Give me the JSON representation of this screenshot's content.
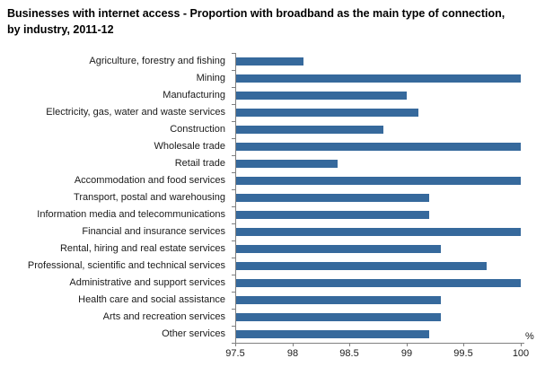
{
  "title_line1": "Businesses with internet access - Proportion with broadband as the main type of connection,",
  "title_line2": "by industry, 2011-12",
  "chart_data": {
    "type": "bar",
    "orientation": "horizontal",
    "title": "Businesses with internet access - Proportion with broadband as the main type of connection, by industry, 2011-12",
    "categories": [
      "Agriculture, forestry and fishing",
      "Mining",
      "Manufacturing",
      "Electricity, gas, water and waste services",
      "Construction",
      "Wholesale trade",
      "Retail trade",
      "Accommodation and food services",
      "Transport, postal and warehousing",
      "Information media and telecommunications",
      "Financial and insurance services",
      "Rental, hiring and real estate services",
      "Professional, scientific and technical services",
      "Administrative and support services",
      "Health care and social assistance",
      "Arts and recreation services",
      "Other services"
    ],
    "values": [
      98.1,
      100,
      99.0,
      99.1,
      98.8,
      100,
      98.4,
      100,
      99.2,
      99.2,
      100,
      99.3,
      99.7,
      100,
      99.3,
      99.3,
      99.2
    ],
    "xlabel": "%",
    "xlim": [
      97.5,
      100
    ],
    "xtick_values": [
      97.5,
      98,
      98.5,
      99,
      99.5,
      100
    ],
    "xtick_labels": [
      "97.5",
      "98",
      "98.5",
      "99",
      "99.5",
      "100"
    ],
    "grid": false,
    "legend": "none",
    "bar_color": "#36699C",
    "axis_color": "#808080",
    "text_color": "#1a1a1a"
  }
}
